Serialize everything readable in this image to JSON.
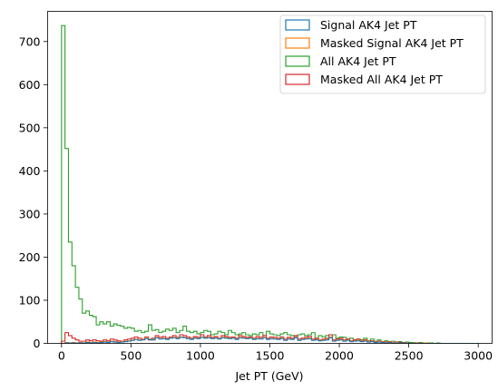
{
  "chart_data": {
    "type": "histogram-step",
    "xlabel": "Jet PT (GeV)",
    "ylabel": "",
    "xlim": [
      -100,
      3100
    ],
    "ylim": [
      0,
      770
    ],
    "x_ticks": [
      0,
      500,
      1000,
      1500,
      2000,
      2500,
      3000
    ],
    "x_tick_labels": [
      "0",
      "500",
      "1000",
      "1500",
      "2000",
      "2500",
      "3000"
    ],
    "y_ticks": [
      0,
      100,
      200,
      300,
      400,
      500,
      600,
      700
    ],
    "y_tick_labels": [
      "0",
      "100",
      "200",
      "300",
      "400",
      "500",
      "600",
      "700"
    ],
    "legend_position": "top-right",
    "legend": [
      {
        "label": "Signal AK4 Jet PT",
        "color": "#1f77b4"
      },
      {
        "label": "Masked Signal AK4 Jet PT",
        "color": "#ff7f0e"
      },
      {
        "label": "All AK4 Jet PT",
        "color": "#2ca02c"
      },
      {
        "label": "Masked All AK4 Jet PT",
        "color": "#d62728"
      }
    ],
    "bin_start": 0,
    "bin_width": 25,
    "series": [
      {
        "name": "All AK4 Jet PT",
        "color": "#2ca02c",
        "values": [
          737,
          452,
          235,
          180,
          130,
          103,
          70,
          75,
          65,
          62,
          43,
          50,
          45,
          50,
          40,
          45,
          42,
          40,
          35,
          37,
          35,
          28,
          30,
          25,
          28,
          43,
          30,
          32,
          25,
          28,
          33,
          30,
          35,
          25,
          30,
          40,
          28,
          25,
          28,
          22,
          25,
          30,
          28,
          20,
          22,
          28,
          25,
          20,
          30,
          25,
          20,
          22,
          25,
          20,
          18,
          22,
          20,
          25,
          18,
          28,
          22,
          20,
          18,
          22,
          25,
          20,
          18,
          15,
          20,
          22,
          18,
          20,
          25,
          12,
          18,
          15,
          18,
          14,
          20,
          12,
          15,
          14,
          10,
          12,
          8,
          10,
          8,
          12,
          6,
          10,
          5,
          8,
          4,
          6,
          3,
          5,
          3,
          4,
          2,
          3,
          2,
          2,
          1,
          2,
          1,
          1,
          1,
          0,
          1,
          0,
          0,
          0,
          0,
          0,
          0,
          0,
          0,
          0,
          0,
          0
        ]
      },
      {
        "name": "Masked All AK4 Jet PT",
        "color": "#d62728",
        "values": [
          5,
          25,
          18,
          12,
          8,
          5,
          5,
          8,
          6,
          8,
          6,
          5,
          8,
          6,
          10,
          8,
          6,
          5,
          8,
          10,
          12,
          15,
          12,
          10,
          15,
          8,
          12,
          18,
          14,
          16,
          12,
          15,
          18,
          14,
          20,
          18,
          15,
          12,
          16,
          14,
          20,
          15,
          18,
          14,
          16,
          12,
          18,
          16,
          14,
          15,
          12,
          18,
          16,
          14,
          15,
          12,
          16,
          14,
          18,
          12,
          15,
          14,
          12,
          15,
          10,
          14,
          12,
          18,
          10,
          12,
          14,
          16,
          10,
          12,
          8,
          10,
          12,
          20,
          8,
          10,
          12,
          8,
          10,
          6,
          8,
          10,
          6,
          8,
          5,
          6,
          4,
          5,
          4,
          3,
          4,
          2,
          3,
          2,
          2,
          1,
          1,
          1,
          1,
          0,
          1,
          0,
          0,
          0,
          0,
          0,
          0,
          0,
          0,
          0,
          0,
          0,
          0,
          0,
          0,
          0
        ]
      },
      {
        "name": "Masked Signal AK4 Jet PT",
        "color": "#ff7f0e",
        "values": [
          0,
          2,
          1,
          2,
          1,
          2,
          1,
          3,
          2,
          3,
          2,
          3,
          4,
          3,
          5,
          4,
          3,
          4,
          5,
          6,
          8,
          10,
          8,
          9,
          12,
          10,
          9,
          14,
          11,
          12,
          10,
          13,
          14,
          12,
          15,
          14,
          12,
          10,
          13,
          12,
          15,
          13,
          14,
          12,
          13,
          11,
          14,
          13,
          12,
          13,
          10,
          14,
          13,
          12,
          13,
          10,
          12,
          11,
          14,
          10,
          12,
          11,
          10,
          12,
          8,
          11,
          10,
          14,
          8,
          10,
          11,
          12,
          8,
          9,
          7,
          8,
          9,
          14,
          6,
          8,
          9,
          6,
          8,
          5,
          6,
          7,
          5,
          6,
          4,
          5,
          3,
          4,
          3,
          2,
          3,
          2,
          2,
          1,
          1,
          1,
          1,
          1,
          0,
          0,
          1,
          0,
          0,
          0,
          0,
          0,
          0,
          0,
          0,
          0,
          0,
          0,
          0,
          0,
          0,
          0
        ]
      },
      {
        "name": "Signal AK4 Jet PT",
        "color": "#1f77b4",
        "values": [
          0,
          1,
          1,
          1,
          1,
          1,
          1,
          2,
          1,
          2,
          1,
          2,
          3,
          2,
          4,
          3,
          2,
          3,
          4,
          5,
          7,
          9,
          7,
          8,
          11,
          9,
          8,
          13,
          10,
          11,
          9,
          12,
          13,
          11,
          14,
          13,
          11,
          9,
          12,
          11,
          14,
          12,
          13,
          11,
          12,
          10,
          13,
          12,
          11,
          12,
          9,
          13,
          12,
          11,
          12,
          9,
          11,
          10,
          13,
          9,
          11,
          10,
          9,
          11,
          7,
          10,
          9,
          13,
          7,
          9,
          10,
          11,
          7,
          8,
          6,
          7,
          8,
          13,
          5,
          7,
          8,
          5,
          7,
          4,
          5,
          6,
          4,
          5,
          3,
          4,
          2,
          3,
          2,
          1,
          2,
          1,
          1,
          1,
          1,
          0,
          1,
          0,
          0,
          0,
          0,
          0,
          0,
          0,
          0,
          0,
          0,
          0,
          0,
          0,
          0,
          0,
          0,
          0,
          0,
          0
        ]
      }
    ]
  }
}
